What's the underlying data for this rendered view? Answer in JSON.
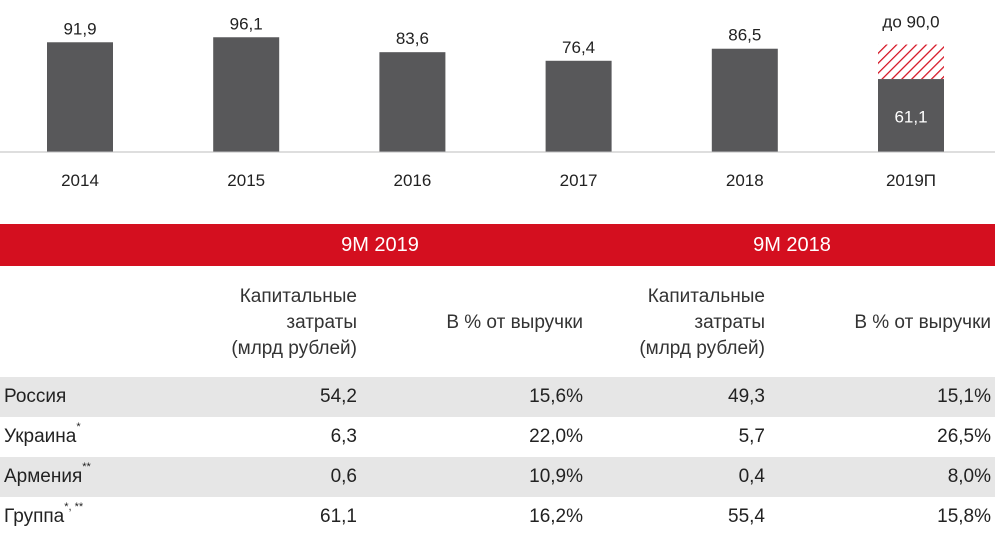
{
  "chart_data": {
    "type": "bar",
    "categories": [
      "2014",
      "2015",
      "2016",
      "2017",
      "2018",
      "2019П"
    ],
    "values": [
      91.9,
      96.1,
      83.6,
      76.4,
      86.5,
      61.1
    ],
    "value_labels": [
      "91,9",
      "96,1",
      "83,6",
      "76,4",
      "86,5",
      "61,1"
    ],
    "forecast": {
      "category": "2019П",
      "upper": 90.0,
      "label": "до 90,0"
    },
    "bar_color": "#58585a",
    "forecast_hatch_color": "#d40f1f",
    "ylim": [
      0,
      100
    ]
  },
  "table": {
    "accent_color": "#d40f1f",
    "periods": [
      "9M 2019",
      "9M 2018"
    ],
    "col_headers": {
      "capex": [
        "Капитальные",
        "затраты",
        "(млрд рублей)"
      ],
      "pct": "В % от выручки"
    },
    "rows": [
      {
        "name": "Россия",
        "note": "",
        "capex_2019": "54,2",
        "pct_2019": "15,6%",
        "capex_2018": "49,3",
        "pct_2018": "15,1%"
      },
      {
        "name": "Украина",
        "note": "*",
        "capex_2019": "6,3",
        "pct_2019": "22,0%",
        "capex_2018": "5,7",
        "pct_2018": "26,5%"
      },
      {
        "name": "Армения",
        "note": "**",
        "capex_2019": "0,6",
        "pct_2019": "10,9%",
        "capex_2018": "0,4",
        "pct_2018": "8,0%"
      },
      {
        "name": "Группа",
        "note": "*, **",
        "capex_2019": "61,1",
        "pct_2019": "16,2%",
        "capex_2018": "55,4",
        "pct_2018": "15,8%"
      }
    ]
  }
}
